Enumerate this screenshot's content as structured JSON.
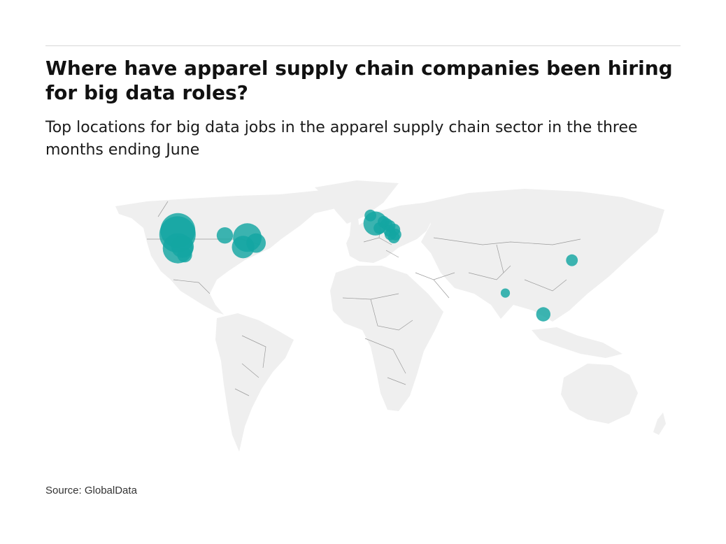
{
  "header": {
    "title": "Where have apparel supply chain companies been hiring for big data roles?",
    "subtitle": "Top locations for big data jobs in the apparel supply chain sector in the three months ending June"
  },
  "footer": {
    "source": "Source: GlobalData"
  },
  "colors": {
    "bubble": "#13a6a2",
    "land": "#efefef",
    "border": "#9a9a9a"
  },
  "map_data": {
    "type": "bubble-map",
    "region": "world",
    "locations": [
      {
        "lon": -122.4,
        "lat": 47.6,
        "size": 0.95
      },
      {
        "lon": -122.6,
        "lat": 45.5,
        "size": 1.0
      },
      {
        "lon": -122.4,
        "lat": 37.8,
        "size": 0.8
      },
      {
        "lon": -119.5,
        "lat": 38.7,
        "size": 0.55
      },
      {
        "lon": -118.2,
        "lat": 34.1,
        "size": 0.3
      },
      {
        "lon": -93.3,
        "lat": 44.9,
        "size": 0.35
      },
      {
        "lon": -79.4,
        "lat": 43.7,
        "size": 0.75
      },
      {
        "lon": -74.0,
        "lat": 40.7,
        "size": 0.45
      },
      {
        "lon": -82.0,
        "lat": 38.5,
        "size": 0.55
      },
      {
        "lon": -3.2,
        "lat": 55.9,
        "size": 0.2
      },
      {
        "lon": -0.1,
        "lat": 51.5,
        "size": 0.6
      },
      {
        "lon": 2.4,
        "lat": 48.9,
        "size": 0.2
      },
      {
        "lon": 4.9,
        "lat": 52.4,
        "size": 0.2
      },
      {
        "lon": 6.8,
        "lat": 51.2,
        "size": 0.2
      },
      {
        "lon": 8.7,
        "lat": 50.1,
        "size": 0.2
      },
      {
        "lon": 8.5,
        "lat": 47.4,
        "size": 0.2
      },
      {
        "lon": 11.6,
        "lat": 48.1,
        "size": 0.2
      },
      {
        "lon": 9.2,
        "lat": 45.5,
        "size": 0.2
      },
      {
        "lon": 12.3,
        "lat": 45.4,
        "size": 0.2
      },
      {
        "lon": 11.3,
        "lat": 43.8,
        "size": 0.2
      },
      {
        "lon": 121.5,
        "lat": 31.2,
        "size": 0.2
      },
      {
        "lon": 80.3,
        "lat": 13.1,
        "size": 0.12
      },
      {
        "lon": 103.8,
        "lat": 1.35,
        "size": 0.28
      }
    ]
  }
}
